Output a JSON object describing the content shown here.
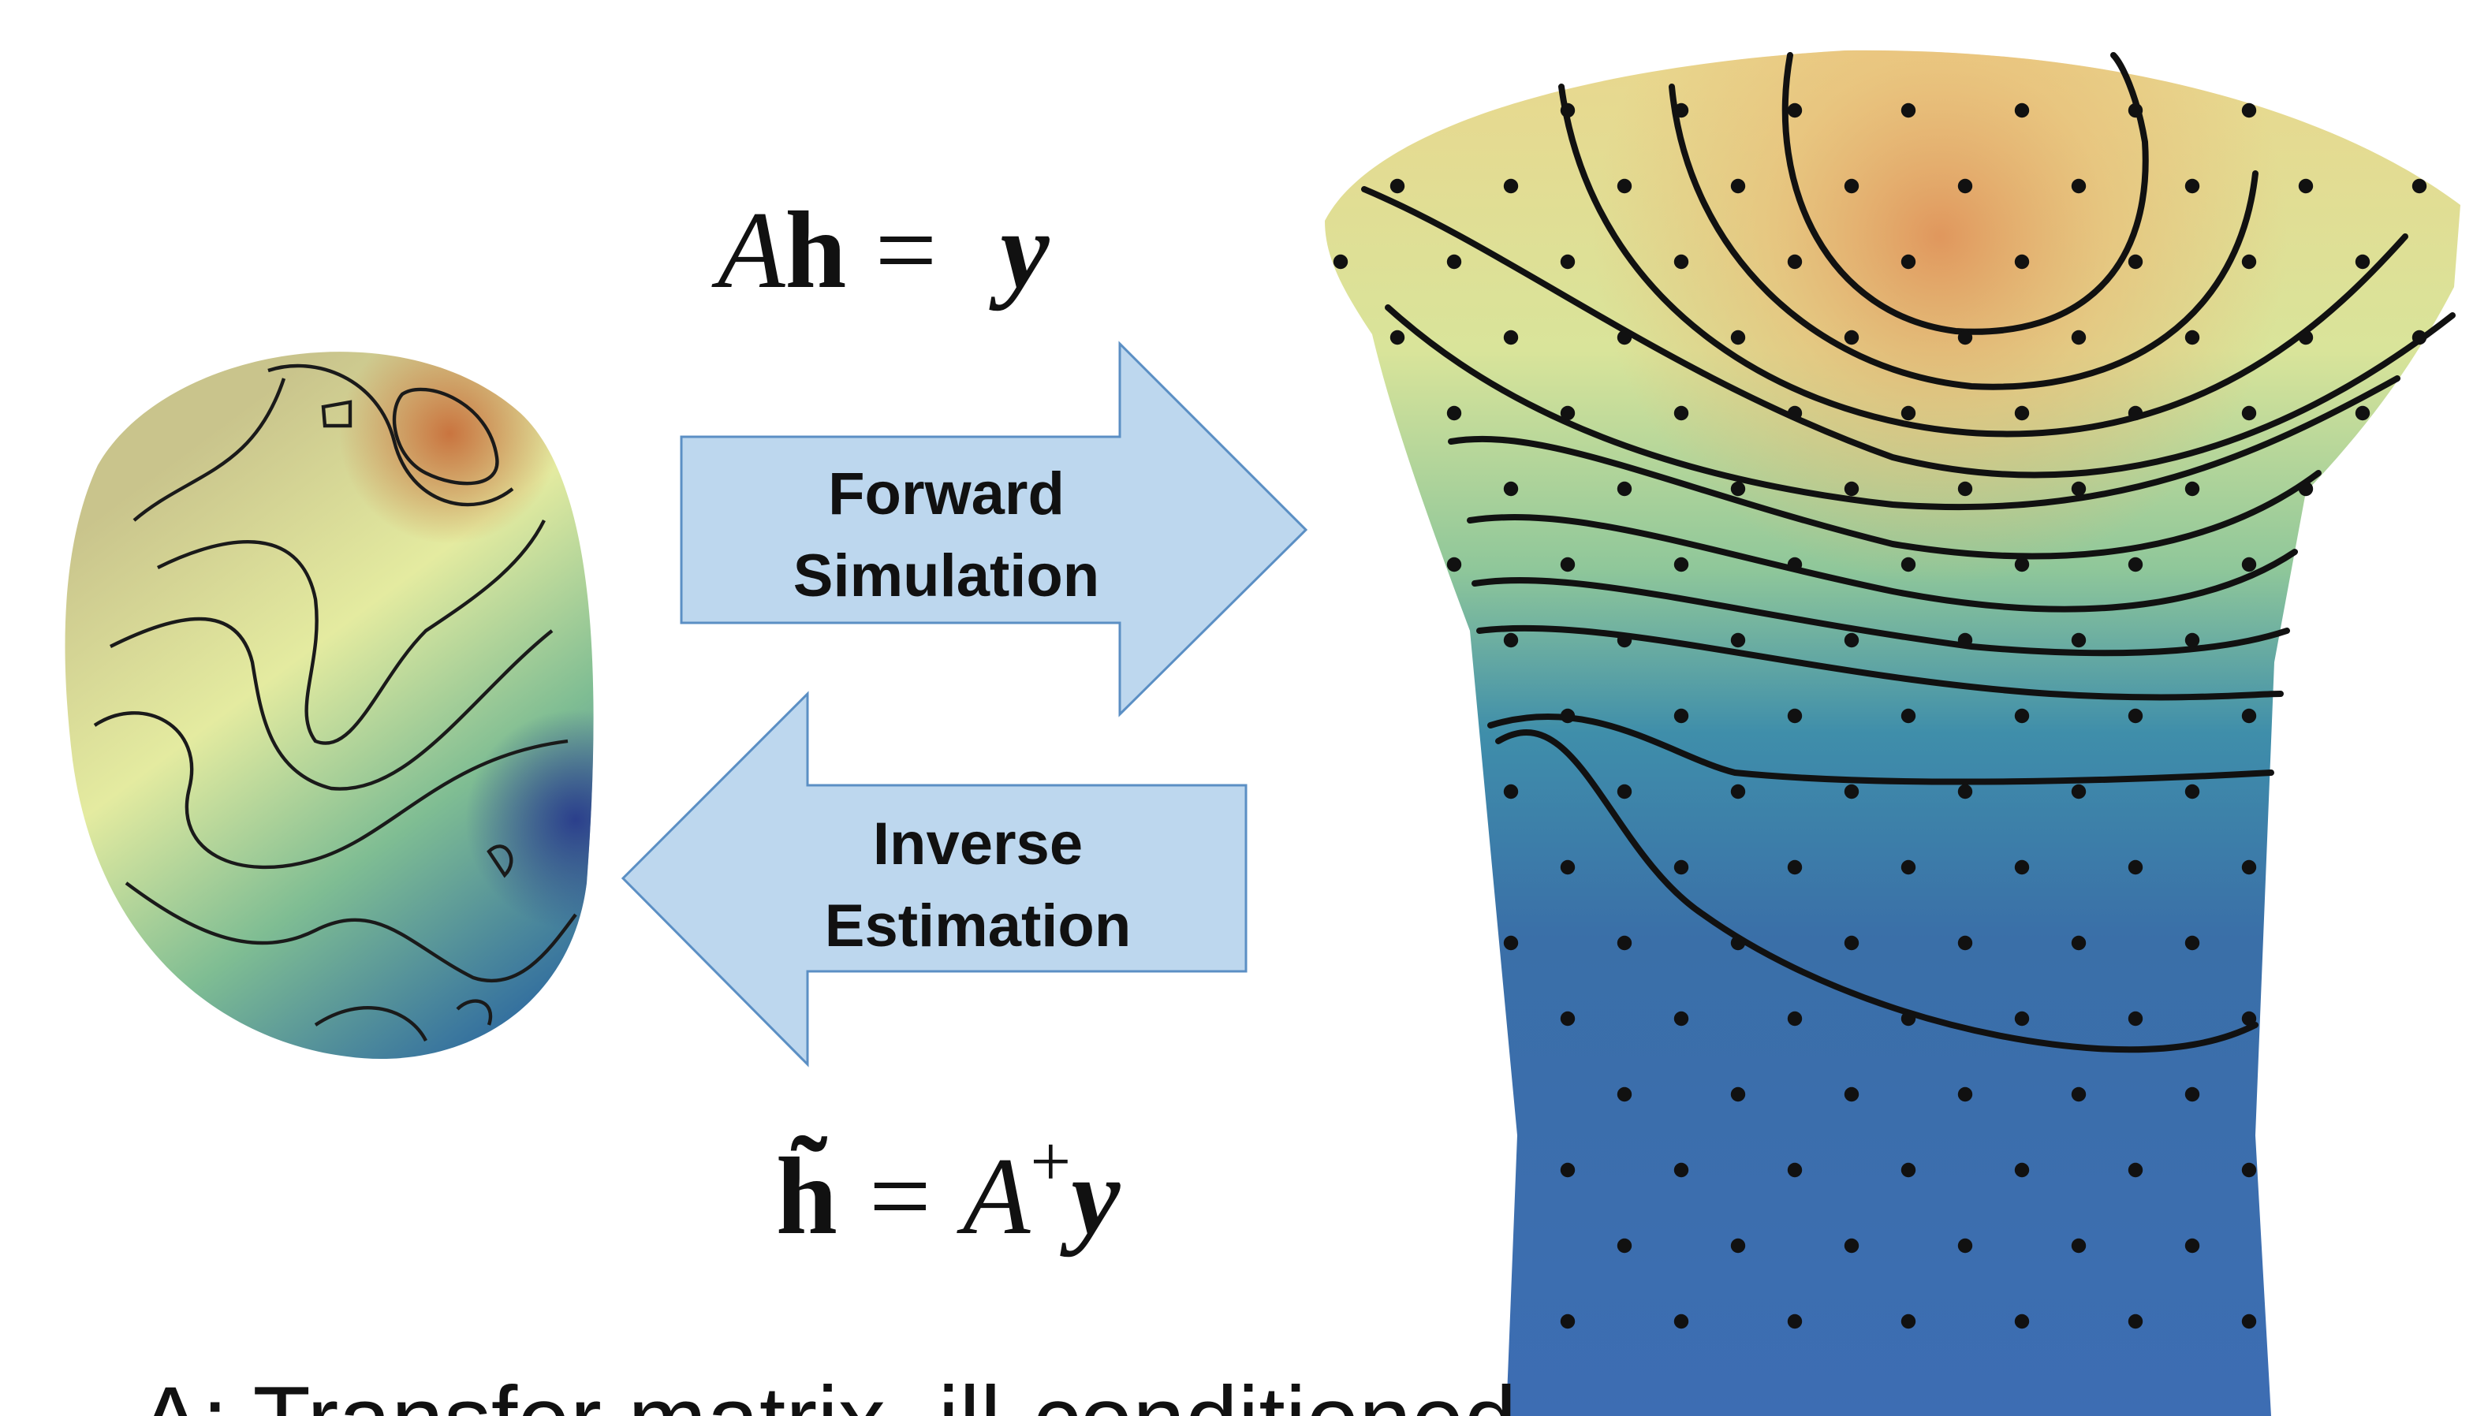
{
  "forward_equation": {
    "parts": [
      "A",
      "h",
      "=",
      "y"
    ]
  },
  "forward_arrow": {
    "label_lines": [
      "Forward",
      "Simulation"
    ]
  },
  "inverse_arrow": {
    "label_lines": [
      "Inverse",
      "Estimation"
    ]
  },
  "inverse_equation": {
    "parts": [
      "h̃",
      "=",
      "A",
      "+",
      "y"
    ]
  },
  "footnote": "A: Transfer matrix, ill-conditioned"
}
